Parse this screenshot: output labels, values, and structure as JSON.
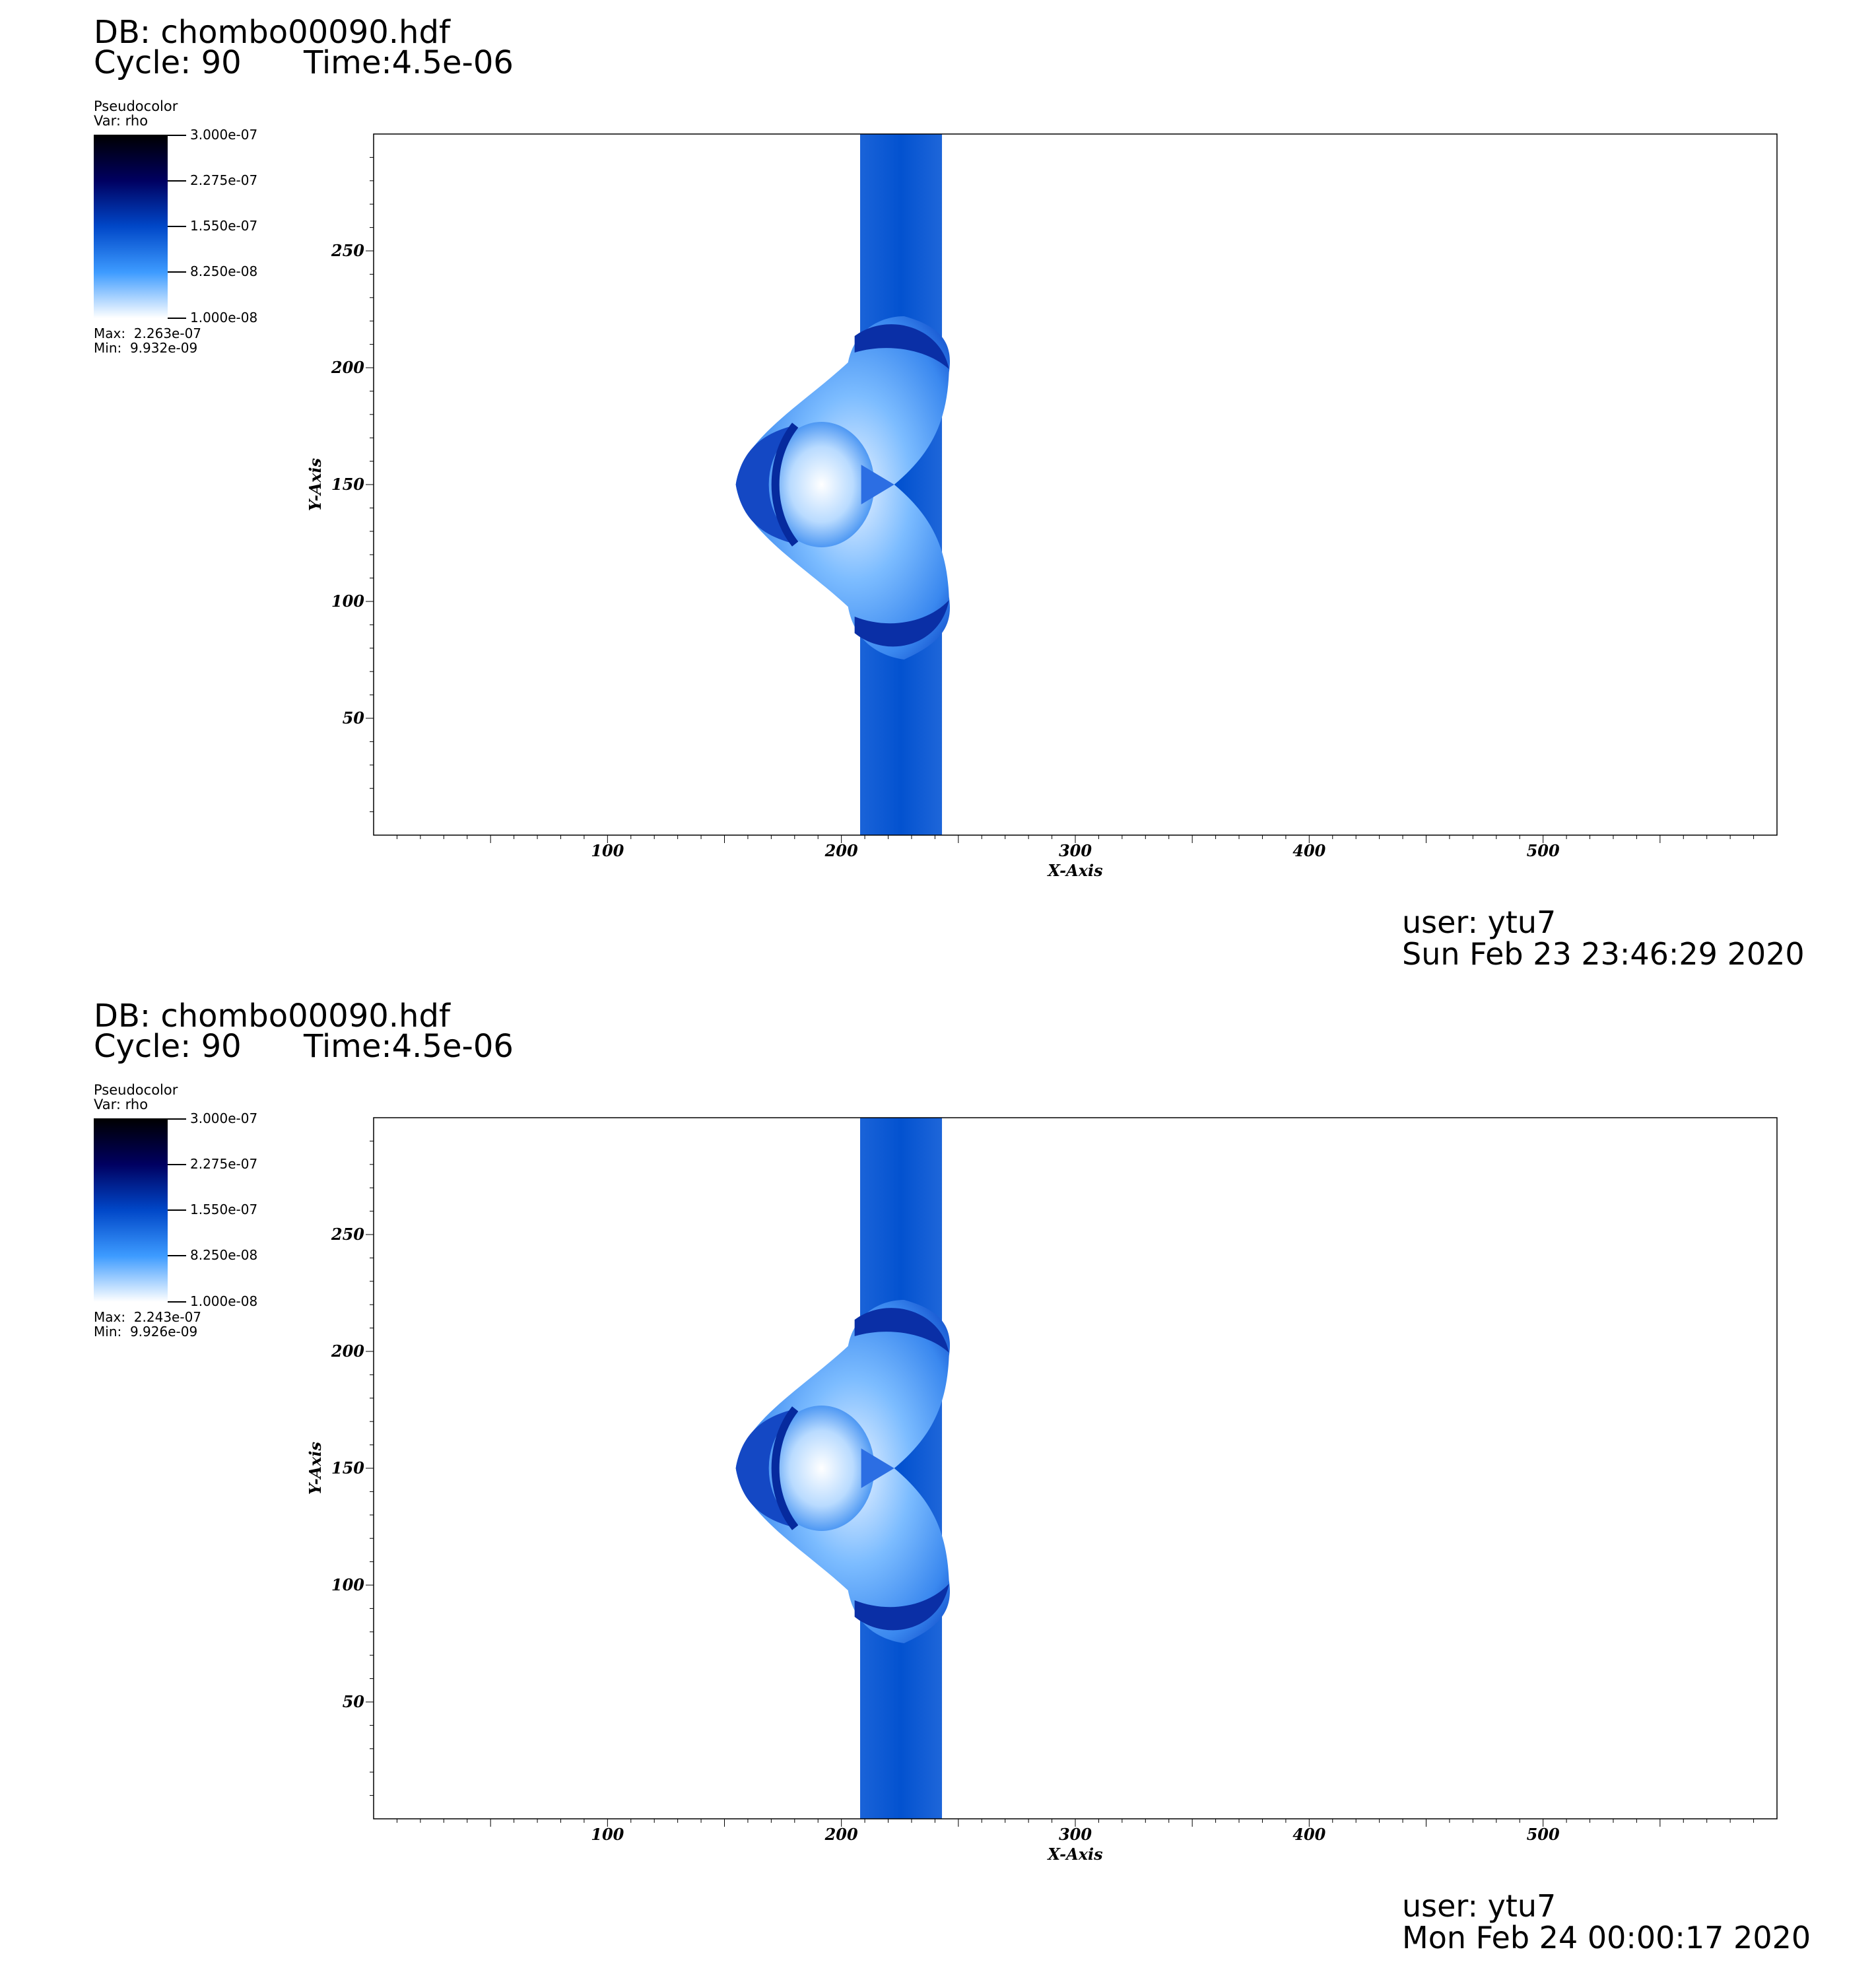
{
  "panels": [
    {
      "db": "DB: chombo00090.hdf",
      "cycle": "Cycle: 90",
      "time": "Time:4.5e-06",
      "legend": {
        "plot_type": "Pseudocolor",
        "var": "Var: rho",
        "ticks": [
          "3.000e-07",
          "2.275e-07",
          "1.550e-07",
          "8.250e-08",
          "1.000e-08"
        ],
        "max": "Max:  2.263e-07",
        "min": "Min:  9.932e-09"
      },
      "user": "user: ytu7",
      "date": "Sun Feb 23 23:46:29 2020"
    },
    {
      "db": "DB: chombo00090.hdf",
      "cycle": "Cycle: 90",
      "time": "Time:4.5e-06",
      "legend": {
        "plot_type": "Pseudocolor",
        "var": "Var: rho",
        "ticks": [
          "3.000e-07",
          "2.275e-07",
          "1.550e-07",
          "8.250e-08",
          "1.000e-08"
        ],
        "max": "Max:  2.243e-07",
        "min": "Min:  9.926e-09"
      },
      "user": "user: ytu7",
      "date": "Mon Feb 24 00:00:17 2020"
    }
  ],
  "chart_data": [
    {
      "type": "heatmap",
      "xlabel": "X-Axis",
      "ylabel": "Y-Axis",
      "xlim": [
        0,
        600
      ],
      "ylim": [
        0,
        300
      ],
      "x_ticks": [
        100,
        200,
        300,
        400,
        500
      ],
      "y_ticks": [
        50,
        100,
        150,
        200,
        250
      ],
      "colormap": [
        "#ffffff",
        "#3d9bff",
        "#0047c8",
        "#000060",
        "#000000"
      ],
      "colorbar_range": [
        1e-08,
        3e-07
      ],
      "features": {
        "slab_x": [
          208,
          243
        ],
        "slab_value": 1.5e-07,
        "cloud_center": [
          200,
          150
        ]
      }
    },
    {
      "type": "heatmap",
      "xlabel": "X-Axis",
      "ylabel": "Y-Axis",
      "xlim": [
        0,
        600
      ],
      "ylim": [
        0,
        300
      ],
      "x_ticks": [
        100,
        200,
        300,
        400,
        500
      ],
      "y_ticks": [
        50,
        100,
        150,
        200,
        250
      ],
      "colormap": [
        "#ffffff",
        "#3d9bff",
        "#0047c8",
        "#000060",
        "#000000"
      ],
      "colorbar_range": [
        1e-08,
        3e-07
      ],
      "features": {
        "slab_x": [
          208,
          243
        ],
        "slab_value": 1.5e-07,
        "cloud_center": [
          200,
          150
        ]
      }
    }
  ]
}
